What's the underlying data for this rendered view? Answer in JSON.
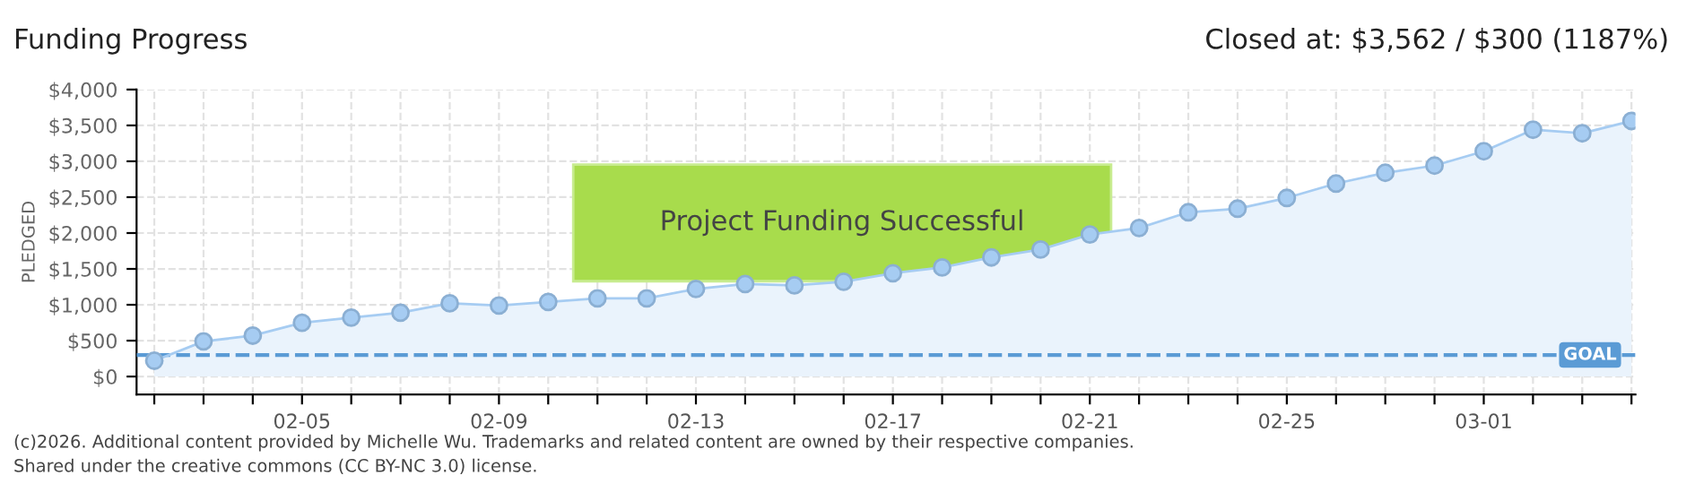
{
  "chart_data": {
    "type": "area",
    "title": "Funding Progress",
    "ylabel": "PLEDGED",
    "categories": [
      null,
      null,
      null,
      "02-05",
      null,
      null,
      null,
      "02-09",
      null,
      null,
      null,
      "02-13",
      null,
      null,
      null,
      "02-17",
      null,
      null,
      null,
      "02-21",
      null,
      null,
      null,
      "02-25",
      null,
      null,
      null,
      "03-01",
      null,
      null,
      null
    ],
    "series": [
      {
        "color": "#eaf3fc",
        "values": [
          220,
          490,
          570,
          750,
          820,
          890,
          1020,
          990,
          1040,
          1090,
          1090,
          1220,
          1290,
          1270,
          1320,
          1440,
          1520,
          1660,
          1770,
          1980,
          2070,
          2290,
          2340,
          2490,
          2690,
          2840,
          2940,
          3140,
          3440,
          3390,
          3562
        ]
      }
    ],
    "ylim": [
      -250,
      4000
    ],
    "yticks": [
      {
        "value": 0,
        "label": "$0"
      },
      {
        "value": 500,
        "label": "$500"
      },
      {
        "value": 1000,
        "label": "$1,000"
      },
      {
        "value": 1500,
        "label": "$1,500"
      },
      {
        "value": 2000,
        "label": "$2,000"
      },
      {
        "value": 2500,
        "label": "$2,500"
      },
      {
        "value": 3000,
        "label": "$3,000"
      },
      {
        "value": 3500,
        "label": "$3,500"
      },
      {
        "value": 4000,
        "label": "$4,000"
      }
    ],
    "ref_lines": [
      {
        "axis": "y",
        "value": 300,
        "label": "GOAL",
        "color": "#5b9bd5",
        "line_style": "dashed"
      }
    ],
    "grid": true,
    "marker": "circle",
    "line_style": "solid",
    "legend": false,
    "annotations": [
      "Closed at: $3,562 / $300 (1187%)",
      "Project Funding Successful",
      "(c)2026. Additional content provided by Michelle Wu. Trademarks and related content are owned by their respective companies.",
      "Shared under the creative commons (CC BY-NC 3.0) license."
    ]
  }
}
